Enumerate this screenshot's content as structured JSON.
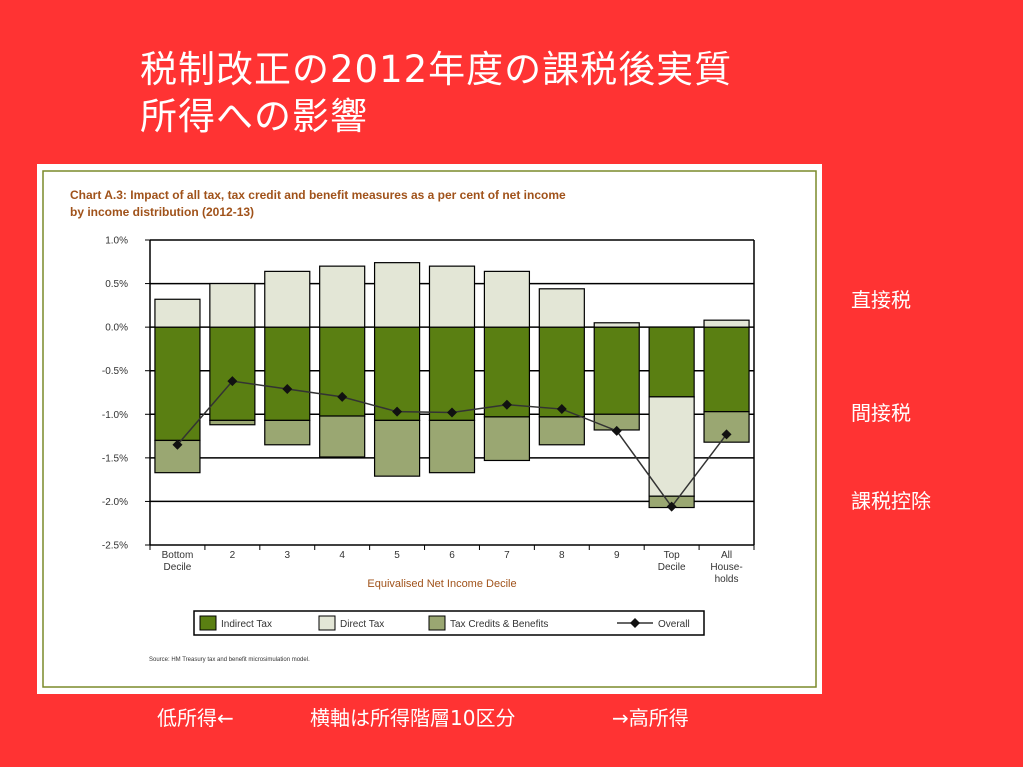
{
  "slide": {
    "title_line1": "税制改正の2012年度の課税後実質",
    "title_line2": "所得への影響",
    "side_labels": [
      "直接税",
      "間接税",
      "課税控除"
    ],
    "caption_low": "低所得←",
    "caption_axis": "横軸は所得階層10区分",
    "caption_high": "→高所得",
    "background_color": "#ff3333"
  },
  "chart_data": {
    "type": "bar",
    "title": "Chart A.3: Impact of all tax, tax credit and benefit measures as a per cent of net income by income distribution (2012-13)",
    "title_line1": "Chart A.3: Impact of all tax, tax credit and benefit measures as a per cent of net income",
    "title_line2": "by income distribution (2012-13)",
    "xlabel": "Equivalised Net Income Decile",
    "ylabel": "",
    "ylim": [
      -2.5,
      1.0
    ],
    "yticks": [
      1.0,
      0.5,
      0.0,
      -0.5,
      -1.0,
      -1.5,
      -2.0,
      -2.5
    ],
    "ytick_labels": [
      "1.0%",
      "0.5%",
      "0.0%",
      "-0.5%",
      "-1.0%",
      "-1.5%",
      "-2.0%",
      "-2.5%"
    ],
    "categories": [
      "Bottom Decile",
      "2",
      "3",
      "4",
      "5",
      "6",
      "7",
      "8",
      "9",
      "Top Decile",
      "All Households"
    ],
    "category_label_lines": [
      [
        "Bottom",
        "Decile"
      ],
      [
        "2"
      ],
      [
        "3"
      ],
      [
        "4"
      ],
      [
        "5"
      ],
      [
        "6"
      ],
      [
        "7"
      ],
      [
        "8"
      ],
      [
        "9"
      ],
      [
        "Top",
        "Decile"
      ],
      [
        "All",
        "House-",
        "holds"
      ]
    ],
    "series": [
      {
        "name": "Indirect Tax",
        "color": "#5a7f12",
        "values": [
          -1.3,
          -1.07,
          -1.07,
          -1.02,
          -1.07,
          -1.07,
          -1.03,
          -1.03,
          -1.0,
          -0.8,
          -0.97
        ]
      },
      {
        "name": "Direct Tax",
        "color": "#e3e6d6",
        "values": [
          0.32,
          0.5,
          0.64,
          0.7,
          0.74,
          0.7,
          0.64,
          0.44,
          0.05,
          -1.14,
          0.08
        ]
      },
      {
        "name": "Tax Credits & Benefits",
        "color": "#9aa772",
        "values": [
          -0.37,
          -0.05,
          -0.28,
          -0.47,
          -0.64,
          -0.6,
          -0.5,
          -0.32,
          -0.18,
          -0.13,
          -0.35
        ]
      },
      {
        "name": "Overall",
        "type": "line",
        "color": "#333333",
        "values": [
          -1.35,
          -0.62,
          -0.71,
          -0.8,
          -0.97,
          -0.98,
          -0.89,
          -0.94,
          -1.19,
          -2.06,
          -1.23
        ]
      }
    ],
    "legend": [
      "Indirect Tax",
      "Direct Tax",
      "Tax Credits & Benefits",
      "Overall"
    ],
    "legend_position": "bottom",
    "grid": true,
    "source": "Source: HM Treasury tax and benefit microsimulation model."
  }
}
